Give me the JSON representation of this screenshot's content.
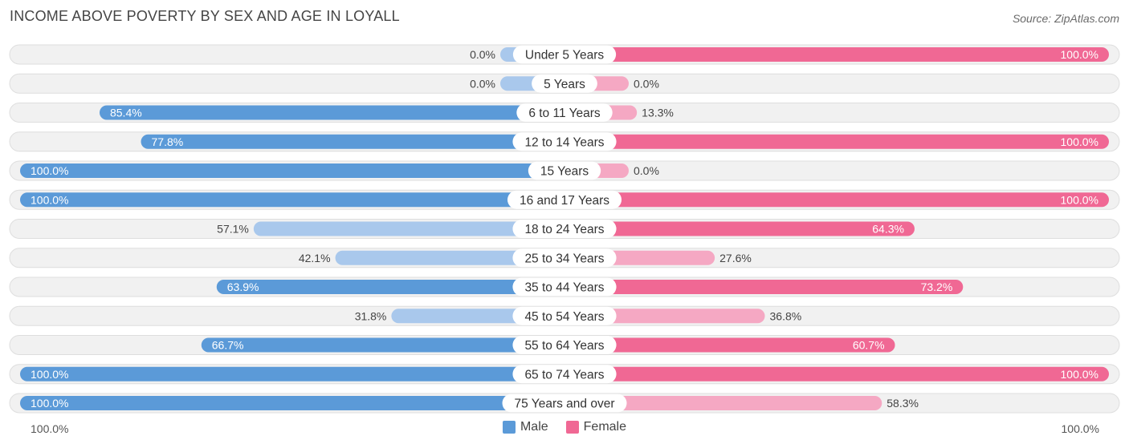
{
  "header": {
    "title": "INCOME ABOVE POVERTY BY SEX AND AGE IN LOYALL",
    "source": "Source: ZipAtlas.com"
  },
  "axis": {
    "left_label": "100.0%",
    "right_label": "100.0%"
  },
  "legend": {
    "male_label": "Male",
    "female_label": "Female"
  },
  "colors": {
    "male_strong": "#5b9ad8",
    "male_light": "#a9c8ec",
    "female_strong": "#f06894",
    "female_light": "#f5a8c3",
    "row_bg": "#f1f1f1"
  },
  "chart_data": {
    "type": "bar",
    "orientation": "horizontal-diverging",
    "title": "INCOME ABOVE POVERTY BY SEX AND AGE IN LOYALL",
    "xlim": [
      0,
      100
    ],
    "categories": [
      "Under 5 Years",
      "5 Years",
      "6 to 11 Years",
      "12 to 14 Years",
      "15 Years",
      "16 and 17 Years",
      "18 to 24 Years",
      "25 to 34 Years",
      "35 to 44 Years",
      "45 to 54 Years",
      "55 to 64 Years",
      "65 to 74 Years",
      "75 Years and over"
    ],
    "series": [
      {
        "name": "Male",
        "values": [
          0.0,
          0.0,
          85.4,
          77.8,
          100.0,
          100.0,
          57.1,
          42.1,
          63.9,
          31.8,
          66.7,
          100.0,
          100.0
        ],
        "labels": [
          "0.0%",
          "0.0%",
          "85.4%",
          "77.8%",
          "100.0%",
          "100.0%",
          "57.1%",
          "42.1%",
          "63.9%",
          "31.8%",
          "66.7%",
          "100.0%",
          "100.0%"
        ]
      },
      {
        "name": "Female",
        "values": [
          100.0,
          0.0,
          13.3,
          100.0,
          0.0,
          100.0,
          64.3,
          27.6,
          73.2,
          36.8,
          60.7,
          100.0,
          58.3
        ],
        "labels": [
          "100.0%",
          "0.0%",
          "13.3%",
          "100.0%",
          "0.0%",
          "100.0%",
          "64.3%",
          "27.6%",
          "73.2%",
          "36.8%",
          "60.7%",
          "100.0%",
          "58.3%"
        ]
      }
    ]
  }
}
